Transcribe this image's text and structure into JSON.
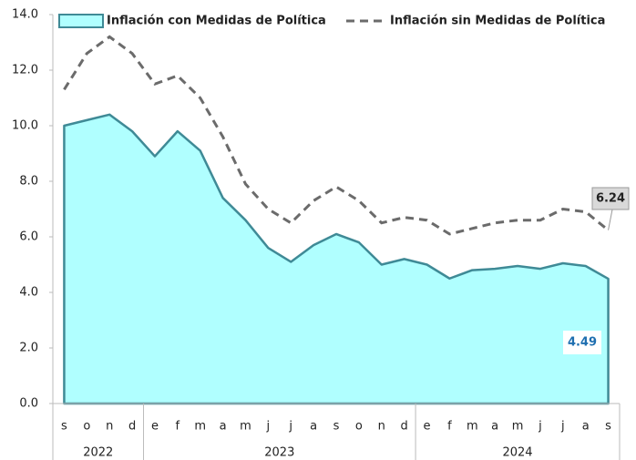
{
  "chart_data": {
    "type": "area-line",
    "categories": [
      "s",
      "o",
      "n",
      "d",
      "e",
      "f",
      "m",
      "a",
      "m",
      "j",
      "j",
      "a",
      "s",
      "o",
      "n",
      "d",
      "e",
      "f",
      "m",
      "a",
      "m",
      "j",
      "j",
      "a",
      "s"
    ],
    "groups": [
      "2022",
      "2022",
      "2022",
      "2022",
      "2023",
      "2023",
      "2023",
      "2023",
      "2023",
      "2023",
      "2023",
      "2023",
      "2023",
      "2023",
      "2023",
      "2023",
      "2024",
      "2024",
      "2024",
      "2024",
      "2024",
      "2024",
      "2024",
      "2024",
      "2024"
    ],
    "series": [
      {
        "name": "Inflación con Medidas de Política",
        "kind": "area",
        "color": "#b0ffff",
        "values": [
          10.0,
          10.2,
          10.4,
          9.8,
          8.9,
          9.8,
          9.1,
          7.4,
          6.6,
          5.6,
          5.1,
          5.7,
          6.1,
          5.8,
          5.0,
          5.2,
          5.0,
          4.5,
          4.8,
          4.85,
          4.95,
          4.85,
          5.05,
          4.95,
          4.49
        ]
      },
      {
        "name": "Inflación sin Medidas de Política",
        "kind": "line",
        "color": "#6b6b6b",
        "values": [
          11.3,
          12.6,
          13.2,
          12.6,
          11.5,
          11.8,
          11.0,
          9.6,
          7.9,
          7.0,
          6.5,
          7.3,
          7.8,
          7.3,
          6.5,
          6.7,
          6.6,
          6.1,
          6.3,
          6.5,
          6.6,
          6.6,
          7.0,
          6.9,
          6.24
        ]
      }
    ],
    "ylim": [
      0,
      14
    ],
    "yticks": [
      {
        "value": 0,
        "label": "0.0"
      },
      {
        "value": 2,
        "label": "2.0"
      },
      {
        "value": 4,
        "label": "4.0"
      },
      {
        "value": 6,
        "label": "6.0"
      },
      {
        "value": 8,
        "label": "8.0"
      },
      {
        "value": 10,
        "label": "10.0"
      },
      {
        "value": 12,
        "label": "12.0"
      },
      {
        "value": 14,
        "label": "14.0"
      }
    ]
  }
}
